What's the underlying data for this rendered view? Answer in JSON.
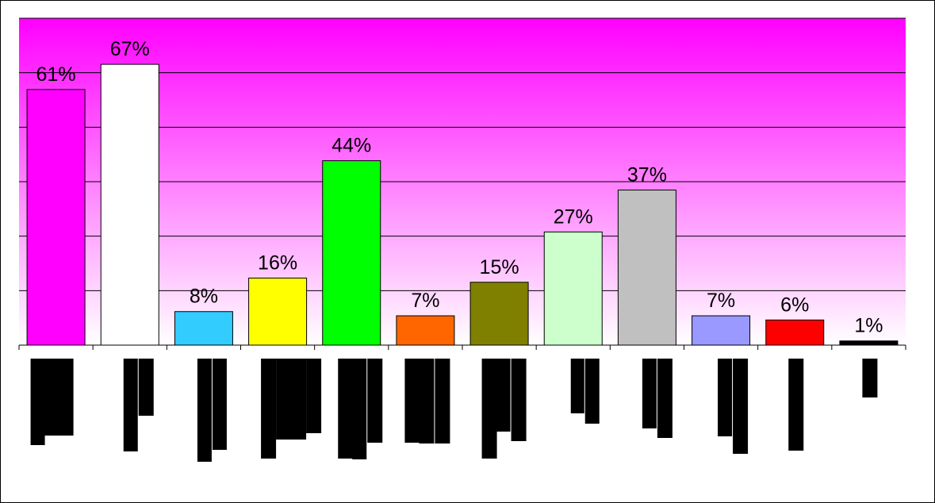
{
  "chart_data": {
    "type": "bar",
    "categories": [
      "",
      "",
      "",
      "",
      "",
      "",
      "",
      "",
      "",
      "",
      "",
      ""
    ],
    "values": [
      61,
      67,
      8,
      16,
      44,
      7,
      15,
      27,
      37,
      7,
      6,
      1
    ],
    "data_labels": [
      "61%",
      "67%",
      "8%",
      "16%",
      "44%",
      "7%",
      "15%",
      "27%",
      "37%",
      "7%",
      "6%",
      "1%"
    ],
    "bar_colors": [
      "#ff00ff",
      "#ffffff",
      "#33ccff",
      "#ffff00",
      "#00ff00",
      "#ff6600",
      "#808000",
      "#ccffcc",
      "#c0c0c0",
      "#9999ff",
      "#ff0000",
      "#000000"
    ],
    "ylim": [
      0,
      78
    ],
    "grid": true,
    "plot_background": "gradient #ff00ff to #ffffff",
    "category_labels_redacted": true,
    "title": "",
    "xlabel": "",
    "ylabel": ""
  }
}
